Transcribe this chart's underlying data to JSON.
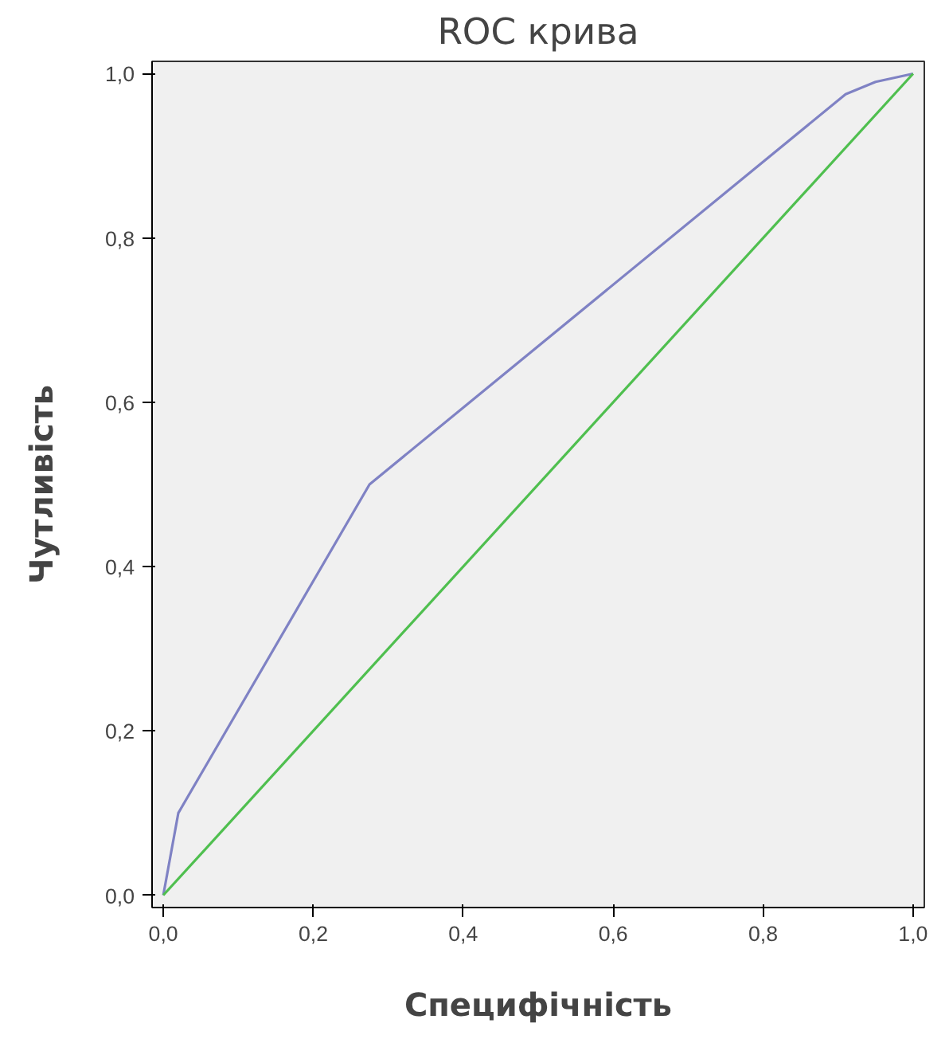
{
  "chart_data": {
    "type": "line",
    "title": "ROC крива",
    "xlabel": "Специфічність",
    "ylabel": "Чутливість",
    "xlim": [
      -0.015,
      1.015
    ],
    "ylim": [
      -0.015,
      1.015
    ],
    "xticks": [
      {
        "value": 0,
        "label": "0,0"
      },
      {
        "value": 0.2,
        "label": "0,2"
      },
      {
        "value": 0.4,
        "label": "0,4"
      },
      {
        "value": 0.6,
        "label": "0,6"
      },
      {
        "value": 0.8,
        "label": "0,8"
      },
      {
        "value": 1,
        "label": "1,0"
      }
    ],
    "yticks": [
      {
        "value": 0,
        "label": "0,0"
      },
      {
        "value": 0.2,
        "label": "0,2"
      },
      {
        "value": 0.4,
        "label": "0,4"
      },
      {
        "value": 0.6,
        "label": "0,6"
      },
      {
        "value": 0.8,
        "label": "0,8"
      },
      {
        "value": 1,
        "label": "1,0"
      }
    ],
    "series": [
      {
        "color": "#7f82c4",
        "x": [
          0,
          0.02,
          0.275,
          0.91,
          0.95,
          1
        ],
        "values": [
          0,
          0.1,
          0.5,
          0.975,
          0.99,
          1
        ]
      },
      {
        "color": "#4fbf4f",
        "x": [
          0,
          1
        ],
        "values": [
          0,
          1
        ]
      }
    ],
    "grid": false,
    "marker": "none",
    "line_style": "solid"
  }
}
